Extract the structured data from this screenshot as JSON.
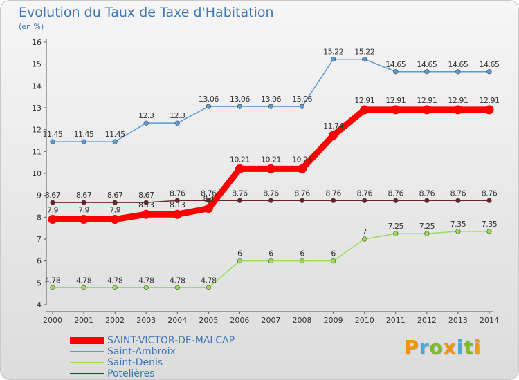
{
  "title": "Evolution du Taux de Taxe d'Habitation",
  "unit": "(en %)",
  "logo": {
    "text": "Proxiti",
    "colors": [
      "#f29500",
      "#4aa8d8",
      "#7dbb2d",
      "#f29500",
      "#4aa8d8",
      "#7dbb2d",
      "#e8a200"
    ]
  },
  "chart_data": {
    "type": "line",
    "title": "Evolution du Taux de Taxe d'Habitation",
    "ylabel": "(en %)",
    "x": [
      2000,
      2001,
      2002,
      2003,
      2004,
      2005,
      2006,
      2007,
      2008,
      2009,
      2010,
      2011,
      2012,
      2013,
      2014
    ],
    "ylim": [
      4,
      16
    ],
    "yticks": [
      4,
      5,
      6,
      7,
      8,
      9,
      10,
      11,
      12,
      13,
      14,
      15,
      16
    ],
    "grid": false,
    "legend_position": "bottom-left",
    "series": [
      {
        "name": "SAINT-VICTOR-DE-MALCAP",
        "color": "#ff0000",
        "values": [
          7.9,
          7.9,
          7.9,
          8.13,
          8.13,
          8.4,
          10.21,
          10.21,
          10.21,
          11.74,
          12.91,
          12.91,
          12.91,
          12.91,
          12.91
        ],
        "labels": [
          "7.9",
          "7.9",
          "7.9",
          "8.13",
          "8.13",
          "8.4",
          "10.21",
          "10.21",
          "10.21",
          "11.74",
          "12.91",
          "12.91",
          "12.91",
          "12.91",
          "12.91"
        ]
      },
      {
        "name": "Saint-Ambroix",
        "color": "#5a9bd5",
        "values": [
          11.45,
          11.45,
          11.45,
          12.3,
          12.3,
          13.06,
          13.06,
          13.06,
          13.06,
          15.22,
          15.22,
          14.65,
          14.65,
          14.65,
          14.65
        ],
        "labels": [
          "11.45",
          "11.45",
          "11.45",
          "12.3",
          "12.3",
          "13.06",
          "13.06",
          "13.06",
          "13.06",
          "15.22",
          "15.22",
          "14.65",
          "14.65",
          "14.65",
          "14.65"
        ]
      },
      {
        "name": "Saint-Denis",
        "color": "#99dd55",
        "values": [
          4.78,
          4.78,
          4.78,
          4.78,
          4.78,
          4.78,
          6,
          6,
          6,
          6,
          7,
          7.25,
          7.25,
          7.35,
          7.35
        ],
        "labels": [
          "4.78",
          "4.78",
          "4.78",
          "4.78",
          "4.78",
          "4.78",
          "6",
          "6",
          "6",
          "6",
          "7",
          "7.25",
          "7.25",
          "7.35",
          "7.35"
        ]
      },
      {
        "name": "Potelières",
        "color": "#6b2424",
        "values": [
          8.67,
          8.67,
          8.67,
          8.67,
          8.76,
          8.76,
          8.76,
          8.76,
          8.76,
          8.76,
          8.76,
          8.76,
          8.76,
          8.76,
          8.76
        ],
        "labels": [
          "8.67",
          "8.67",
          "8.67",
          "8.67",
          "8.76",
          "8.76",
          "8.76",
          "8.76",
          "8.76",
          "8.76",
          "8.76",
          "8.76",
          "8.76",
          "8.76",
          "8.76"
        ]
      }
    ]
  }
}
